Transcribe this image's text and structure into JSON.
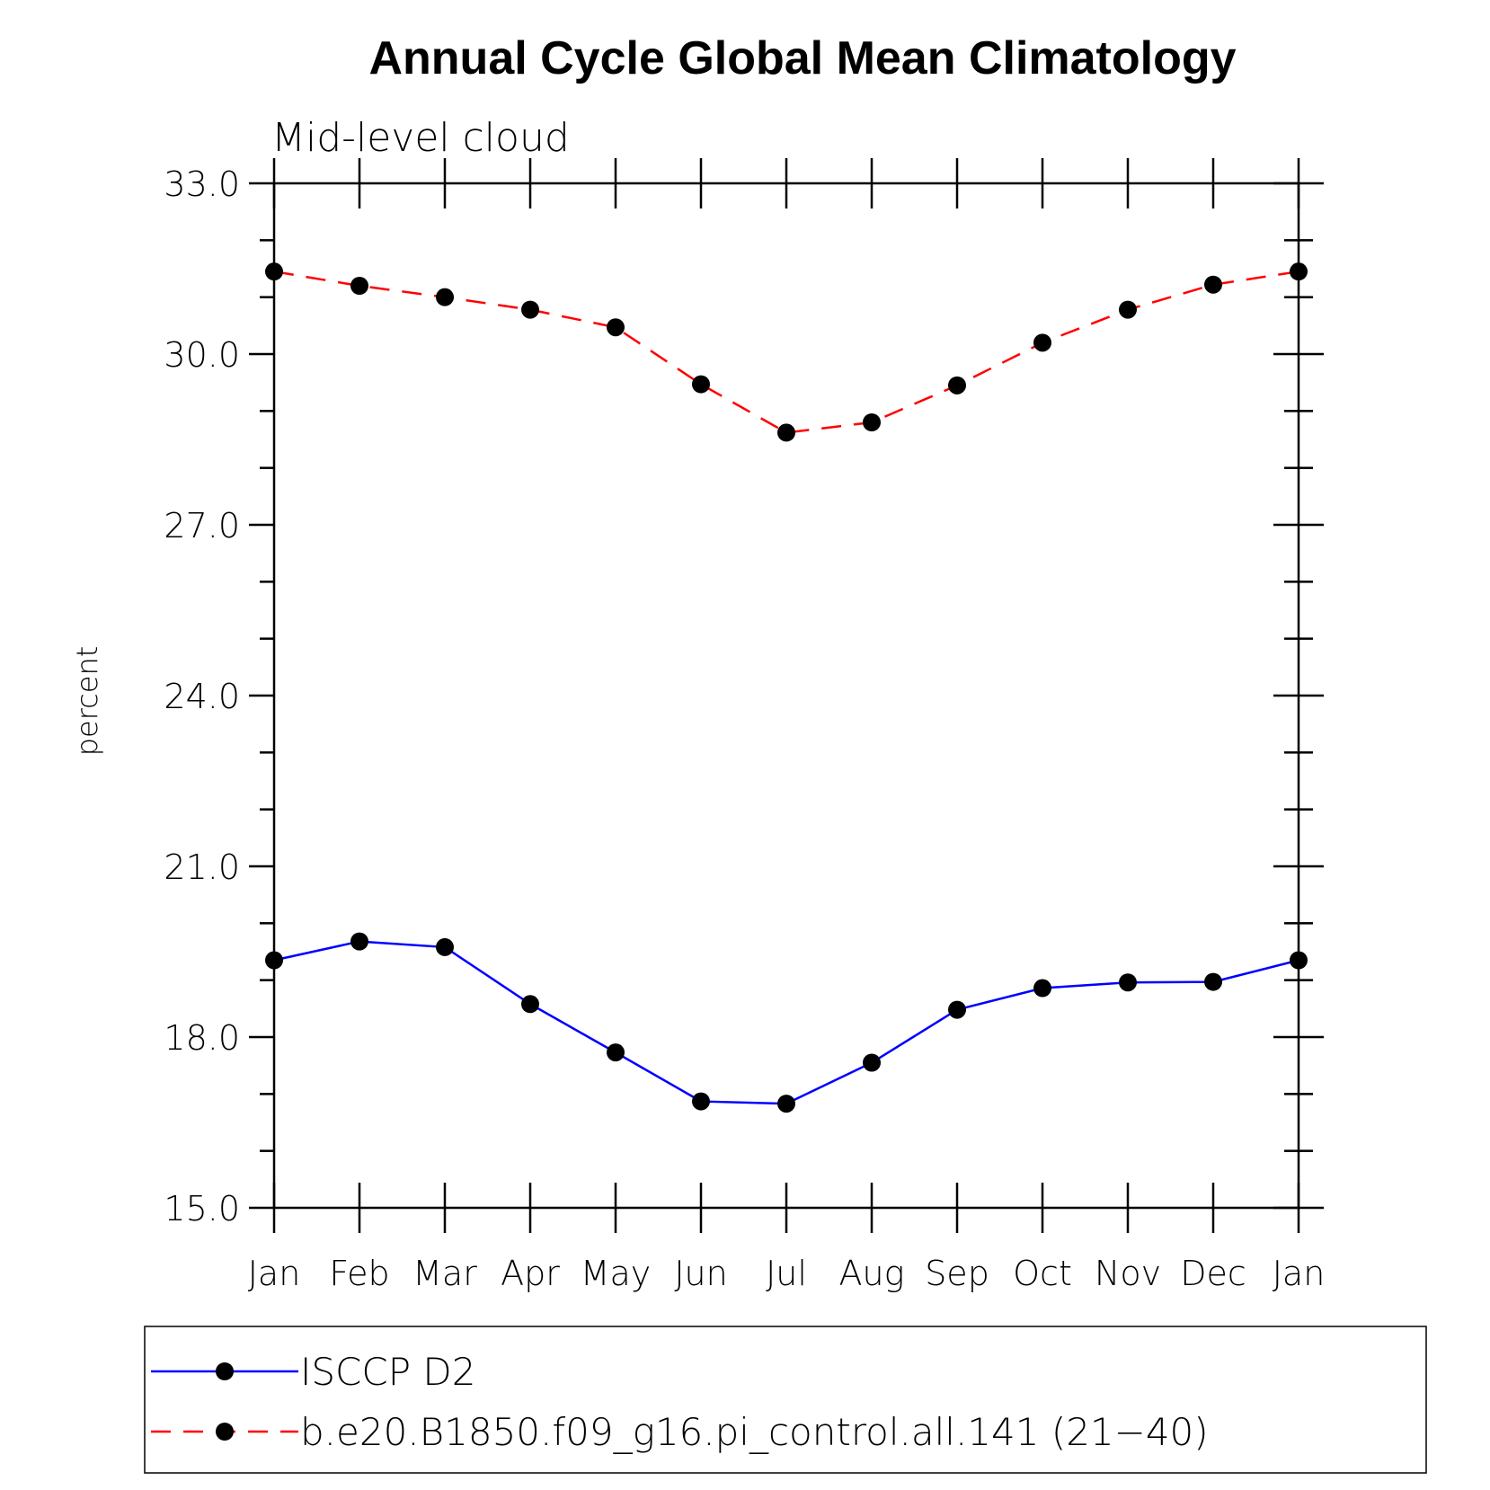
{
  "chart_data": {
    "type": "line",
    "title": "Annual Cycle Global Mean Climatology",
    "subtitle": "Mid-level cloud",
    "ylabel": "percent",
    "xlabel": "",
    "categories": [
      "Jan",
      "Feb",
      "Mar",
      "Apr",
      "May",
      "Jun",
      "Jul",
      "Aug",
      "Sep",
      "Oct",
      "Nov",
      "Dec",
      "Jan"
    ],
    "ylim": [
      15.0,
      33.0
    ],
    "yticks": [
      "15.0",
      "18.0",
      "21.0",
      "24.0",
      "27.0",
      "30.0",
      "33.0"
    ],
    "yticks_values": [
      15,
      18,
      21,
      24,
      27,
      30,
      33
    ],
    "grid": false,
    "legend_position": "bottom",
    "series": [
      {
        "name": "ISCCP D2",
        "color": "#0000ff",
        "dash": "solid",
        "marker": "filled-circle",
        "values": [
          19.35,
          19.68,
          19.58,
          18.58,
          17.73,
          16.87,
          16.83,
          17.55,
          18.48,
          18.86,
          18.96,
          18.97,
          19.35
        ]
      },
      {
        "name": "b.e20.B1850.f09_g16.pi_control.all.141 (21−40)",
        "color": "#ff0000",
        "dash": "dashed",
        "marker": "filled-circle",
        "values": [
          31.45,
          31.2,
          31.0,
          30.78,
          30.47,
          29.47,
          28.62,
          28.8,
          29.45,
          30.2,
          30.78,
          31.22,
          31.45
        ]
      }
    ]
  }
}
